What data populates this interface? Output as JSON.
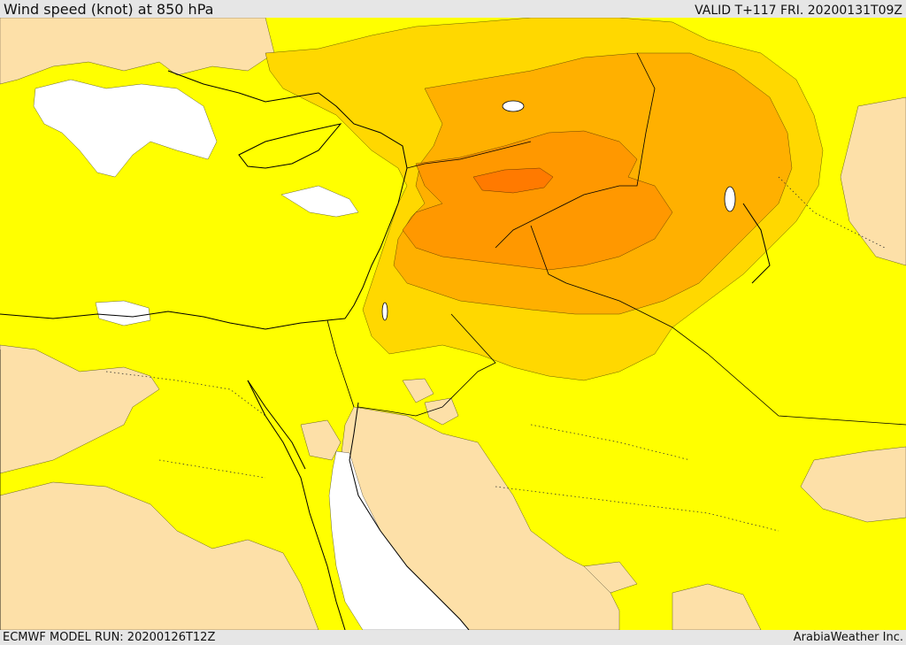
{
  "header": {
    "title": "Wind speed (knot) at 850 hPa",
    "valid": "VALID T+117 FRI. 20200131T09Z"
  },
  "footer": {
    "model_run": "ECMWF MODEL RUN: 20200126T12Z",
    "credit": "ArabiaWeather Inc."
  },
  "map": {
    "colors": {
      "calm": "#ffffff",
      "light": "#fde0a8",
      "moderate": "#ffff00",
      "fresh": "#ffd800",
      "strong": "#ffb000",
      "stronger": "#ff9800",
      "strongest": "#ff7a00",
      "coastline": "#000000"
    }
  }
}
